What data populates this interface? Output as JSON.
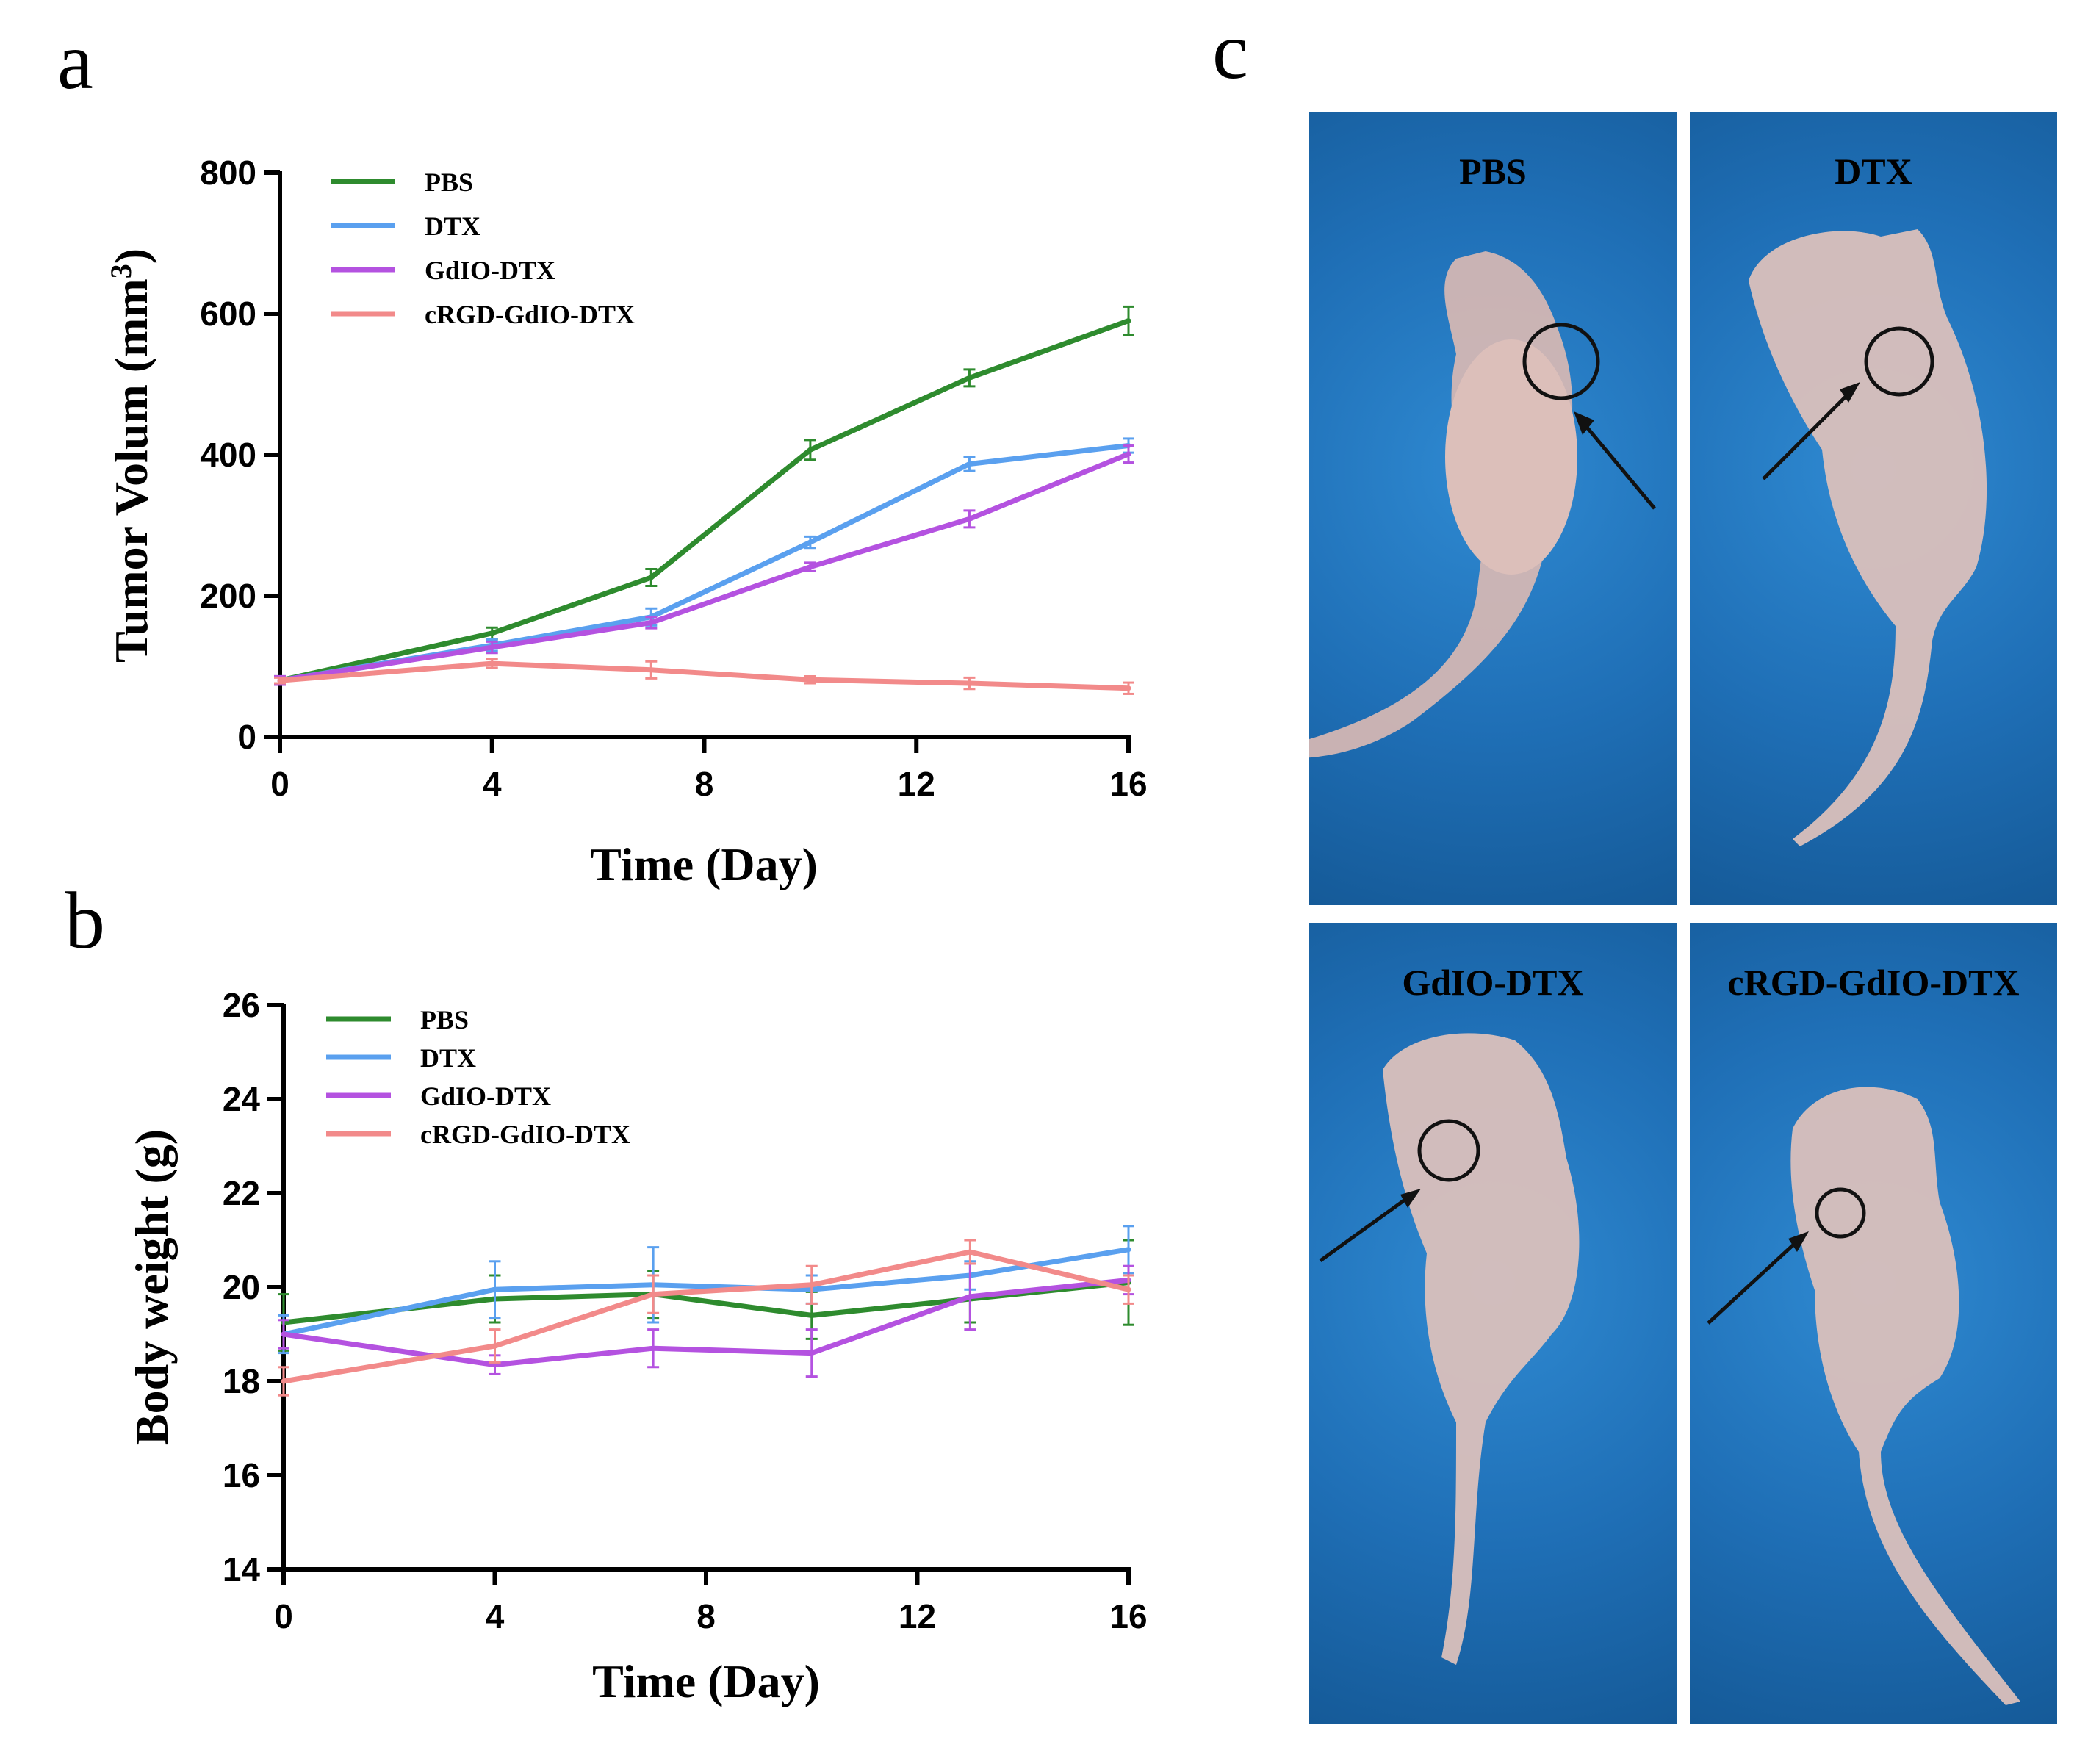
{
  "panels": {
    "a": "a",
    "b": "b",
    "c": "c"
  },
  "colors": {
    "PBS": "#2e8b2e",
    "DTX": "#5aa0ef",
    "GdIO-DTX": "#b452e0",
    "cRGD-GdIO-DTX": "#f28a8a"
  },
  "chart_data": [
    {
      "type": "line",
      "xlabel": "Time (Day)",
      "ylabel": "Tumor Volum (mm",
      "ylabel_sup": "3",
      "ylabel_end": ")",
      "x": [
        0,
        4,
        7,
        10,
        13,
        16
      ],
      "xlim": [
        0,
        16
      ],
      "ylim": [
        0,
        800
      ],
      "xticks": [
        0,
        4,
        8,
        12,
        16
      ],
      "yticks": [
        0,
        200,
        400,
        600,
        800
      ],
      "series": [
        {
          "name": "PBS",
          "values": [
            80,
            147,
            226,
            407,
            509,
            590
          ],
          "errors": [
            6,
            8,
            12,
            14,
            12,
            20
          ]
        },
        {
          "name": "DTX",
          "values": [
            80,
            130,
            170,
            276,
            387,
            413
          ],
          "errors": [
            6,
            8,
            12,
            8,
            10,
            10
          ]
        },
        {
          "name": "GdIO-DTX",
          "values": [
            80,
            127,
            162,
            241,
            309,
            401
          ],
          "errors": [
            6,
            8,
            8,
            6,
            12,
            12
          ]
        },
        {
          "name": "cRGD-GdIO-DTX",
          "values": [
            80,
            104,
            95,
            81,
            76,
            69
          ],
          "errors": [
            4,
            6,
            12,
            5,
            8,
            8
          ]
        }
      ]
    },
    {
      "type": "line",
      "xlabel": "Time (Day)",
      "ylabel": "Body weight (g)",
      "x": [
        0,
        4,
        7,
        10,
        13,
        16
      ],
      "xlim": [
        0,
        16
      ],
      "ylim": [
        14,
        26
      ],
      "xticks": [
        0,
        4,
        8,
        12,
        16
      ],
      "yticks": [
        14,
        16,
        18,
        20,
        22,
        24,
        26
      ],
      "series": [
        {
          "name": "PBS",
          "values": [
            19.25,
            19.75,
            19.85,
            19.4,
            19.75,
            20.1
          ],
          "errors": [
            0.6,
            0.5,
            0.5,
            0.5,
            0.5,
            0.9
          ]
        },
        {
          "name": "DTX",
          "values": [
            19.0,
            19.95,
            20.05,
            19.95,
            20.25,
            20.8
          ],
          "errors": [
            0.4,
            0.6,
            0.8,
            0.3,
            0.3,
            0.5
          ]
        },
        {
          "name": "GdIO-DTX",
          "values": [
            19.0,
            18.35,
            18.7,
            18.6,
            19.8,
            20.15
          ],
          "errors": [
            0.3,
            0.2,
            0.4,
            0.5,
            0.7,
            0.3
          ]
        },
        {
          "name": "cRGD-GdIO-DTX",
          "values": [
            18.0,
            18.75,
            19.85,
            20.05,
            20.75,
            19.95
          ],
          "errors": [
            0.3,
            0.35,
            0.4,
            0.4,
            0.25,
            0.3
          ]
        }
      ]
    }
  ],
  "photos": [
    {
      "label": "PBS"
    },
    {
      "label": "DTX"
    },
    {
      "label": "GdIO-DTX"
    },
    {
      "label": "cRGD-GdIO-DTX"
    }
  ]
}
